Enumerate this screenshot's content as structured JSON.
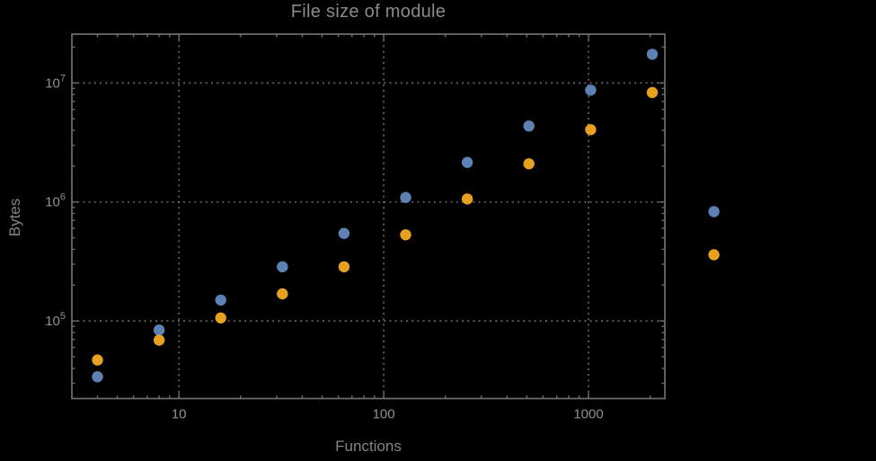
{
  "title": "File size of module",
  "axes": {
    "xlabel": "Functions",
    "ylabel": "Bytes"
  },
  "colors": {
    "background": "#000000",
    "frame": "#6a6a6a",
    "grid": "#828282",
    "tick_text": "#919191",
    "series1": "#5e81b5",
    "series2": "#e5a11f"
  },
  "chart_data": {
    "type": "scatter",
    "title": "File size of module",
    "xlabel": "Functions",
    "ylabel": "Bytes",
    "x_scale": "log",
    "y_scale": "log",
    "grid": "dotted",
    "legend": "none",
    "xlim": [
      3.0,
      2360
    ],
    "ylim": [
      22300,
      25700000
    ],
    "x_major_ticks": [
      10,
      100,
      1000
    ],
    "x_tick_labels": [
      "10",
      "100",
      "1000"
    ],
    "y_major_ticks": [
      100000,
      1000000,
      10000000
    ],
    "y_tick_labels": [
      "10^5",
      "10^6",
      "10^7"
    ],
    "x": [
      4,
      8,
      16,
      32,
      64,
      128,
      256,
      512,
      1024,
      2048,
      4096
    ],
    "series": [
      {
        "name": "blue-series",
        "color": "#5e81b5",
        "values": [
          34000,
          84000,
          150000,
          285000,
          545000,
          1090000,
          2150000,
          4350000,
          8700000,
          17400000,
          830000
        ]
      },
      {
        "name": "orange-series",
        "color": "#e5a11f",
        "values": [
          47000,
          69000,
          106000,
          169000,
          285000,
          530000,
          1060000,
          2090000,
          4050000,
          8300000,
          360000
        ]
      }
    ]
  }
}
